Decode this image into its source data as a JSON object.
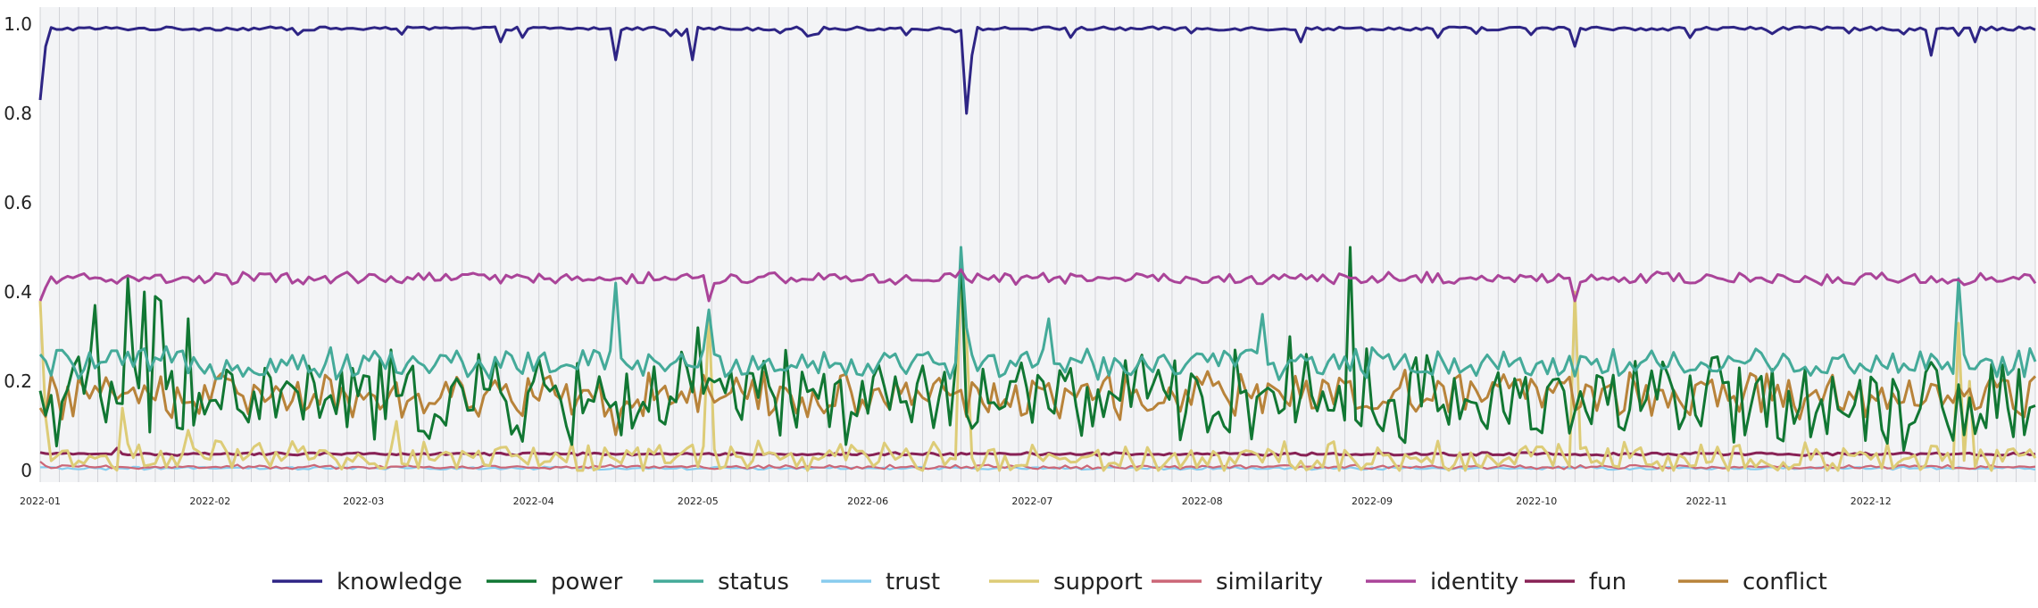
{
  "chart_data": {
    "type": "line",
    "title": "",
    "xlabel": "",
    "ylabel": "",
    "x_start": "2022-01-01",
    "x_end": "2022-12-31",
    "xlim": [
      "2022-01-01",
      "2022-12-31"
    ],
    "ylim": [
      0,
      1.03
    ],
    "grid": "vertical",
    "legend_position": "bottom",
    "x_ticks": [
      "2022-01",
      "2022-02",
      "2022-03",
      "2022-04",
      "2022-05",
      "2022-06",
      "2022-07",
      "2022-08",
      "2022-09",
      "2022-10",
      "2022-11",
      "2022-12"
    ],
    "y_ticks": [
      "0",
      "0.2",
      "0.4",
      "0.6",
      "0.8",
      "1.0"
    ],
    "series": [
      {
        "name": "knowledge",
        "color": "#2e2585",
        "base": 0.99,
        "noise": 0.004,
        "dips": [
          [
            0,
            0.83
          ],
          [
            1,
            0.95
          ],
          [
            62,
            0.99
          ],
          [
            84,
            0.96
          ],
          [
            105,
            0.92
          ],
          [
            119,
            0.92
          ],
          [
            135,
            0.98
          ],
          [
            169,
            0.8
          ],
          [
            170,
            0.93
          ],
          [
            188,
            0.97
          ],
          [
            210,
            0.98
          ],
          [
            230,
            0.96
          ],
          [
            255,
            0.97
          ],
          [
            280,
            0.95
          ],
          [
            330,
            0.98
          ],
          [
            345,
            0.93
          ],
          [
            353,
            0.96
          ]
        ]
      },
      {
        "name": "power",
        "color": "#117733",
        "base": 0.16,
        "noise": 0.09,
        "dips": [
          [
            10,
            0.37
          ],
          [
            16,
            0.43
          ],
          [
            19,
            0.4
          ],
          [
            21,
            0.39
          ],
          [
            22,
            0.38
          ],
          [
            27,
            0.34
          ],
          [
            120,
            0.32
          ],
          [
            168,
            0.48
          ],
          [
            228,
            0.3
          ],
          [
            239,
            0.5
          ],
          [
            241,
            0.1
          ],
          [
            300,
            0.12
          ],
          [
            362,
            0.08
          ]
        ]
      },
      {
        "name": "status",
        "color": "#44aa99",
        "base": 0.24,
        "noise": 0.03,
        "dips": [
          [
            0,
            0.26
          ],
          [
            105,
            0.42
          ],
          [
            122,
            0.36
          ],
          [
            168,
            0.5
          ],
          [
            169,
            0.32
          ],
          [
            184,
            0.34
          ],
          [
            223,
            0.35
          ],
          [
            246,
            0.26
          ],
          [
            300,
            0.22
          ],
          [
            350,
            0.43
          ],
          [
            355,
            0.25
          ],
          [
            362,
            0.21
          ]
        ]
      },
      {
        "name": "trust",
        "color": "#88ccee",
        "base": 0.005,
        "noise": 0.003,
        "dips": []
      },
      {
        "name": "support",
        "color": "#ddcc77",
        "base": 0.03,
        "noise": 0.03,
        "dips": [
          [
            0,
            0.38
          ],
          [
            1,
            0.12
          ],
          [
            15,
            0.14
          ],
          [
            27,
            0.09
          ],
          [
            65,
            0.11
          ],
          [
            122,
            0.35
          ],
          [
            168,
            0.46
          ],
          [
            169,
            0.3
          ],
          [
            280,
            0.4
          ],
          [
            350,
            0.33
          ],
          [
            352,
            0.2
          ]
        ]
      },
      {
        "name": "similarity",
        "color": "#cc6677",
        "base": 0.008,
        "noise": 0.004,
        "dips": [
          [
            0,
            0.02
          ]
        ]
      },
      {
        "name": "identity",
        "color": "#aa4499",
        "base": 0.43,
        "noise": 0.012,
        "dips": [
          [
            0,
            0.38
          ],
          [
            1,
            0.41
          ],
          [
            105,
            0.43
          ],
          [
            122,
            0.38
          ],
          [
            168,
            0.45
          ],
          [
            280,
            0.38
          ]
        ]
      },
      {
        "name": "fun",
        "color": "#882255",
        "base": 0.037,
        "noise": 0.003,
        "dips": [
          [
            14,
            0.05
          ]
        ]
      },
      {
        "name": "conflict",
        "color": "#b8833a",
        "base": 0.17,
        "noise": 0.045,
        "dips": [
          [
            0,
            0.14
          ],
          [
            40,
            0.18
          ],
          [
            105,
            0.08
          ],
          [
            168,
            0.18
          ],
          [
            250,
            0.15
          ],
          [
            362,
            0.12
          ]
        ]
      }
    ]
  }
}
